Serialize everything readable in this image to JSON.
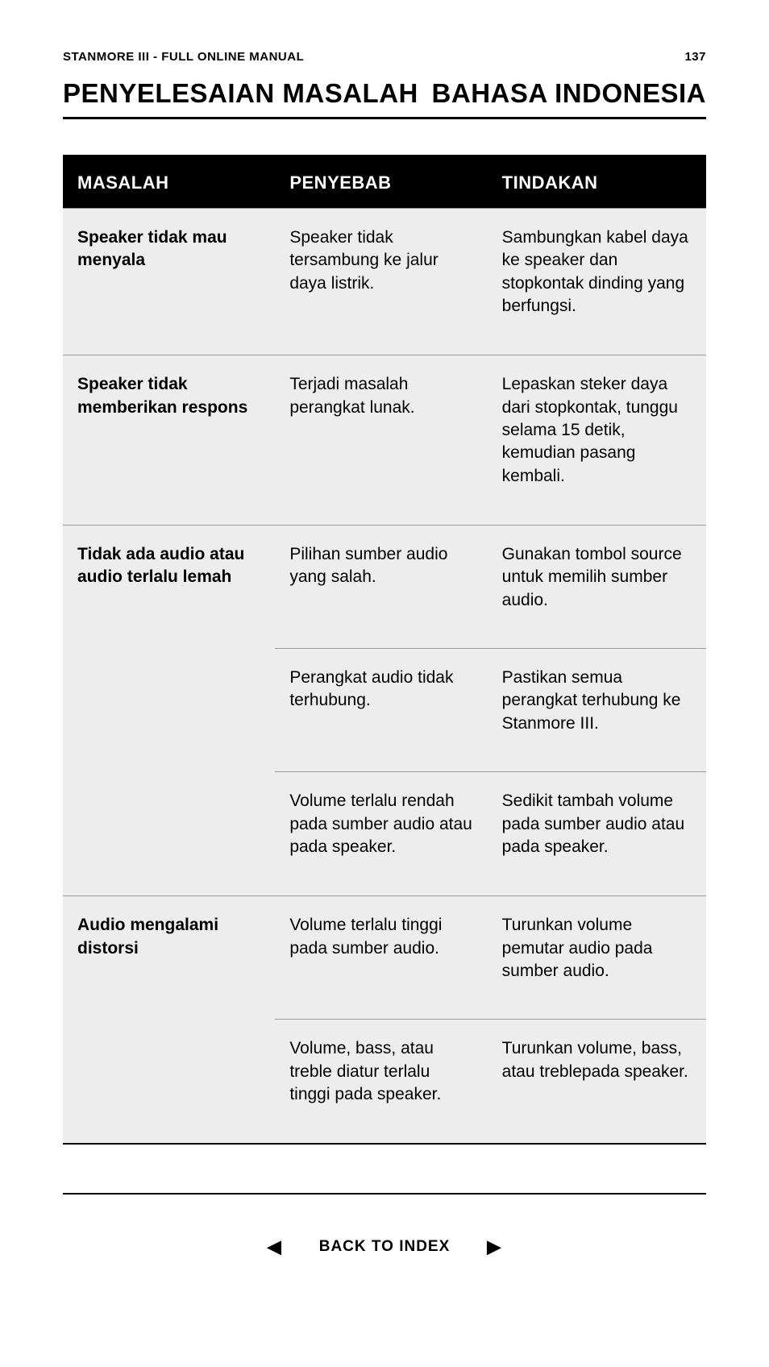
{
  "header": {
    "manual_title": "STANMORE III - FULL ONLINE MANUAL",
    "page_number": "137"
  },
  "titles": {
    "section": "PENYELESAIAN MASALAH",
    "language": "BAHASA INDONESIA"
  },
  "table": {
    "columns": [
      "MASALAH",
      "PENYEBAB",
      "TINDAKAN"
    ],
    "groups": [
      {
        "problem": "Speaker tidak mau menyala",
        "rows": [
          {
            "cause": "Speaker tidak tersambung ke jalur daya listrik.",
            "action": "Sambungkan kabel daya ke speaker dan stopkontak dinding yang berfungsi."
          }
        ]
      },
      {
        "problem": "Speaker tidak memberikan respons",
        "rows": [
          {
            "cause": "Terjadi masalah perangkat lunak.",
            "action": "Lepaskan steker daya dari stopkontak, tunggu selama 15 detik, kemudian pasang kembali."
          }
        ]
      },
      {
        "problem": "Tidak ada audio atau audio terlalu lemah",
        "rows": [
          {
            "cause": "Pilihan sumber audio yang salah.",
            "action": "Gunakan tombol source untuk memilih sumber audio."
          },
          {
            "cause": "Perangkat audio tidak terhubung.",
            "action": "Pastikan semua perangkat terhubung ke Stanmore III."
          },
          {
            "cause": "Volume terlalu rendah pada sumber audio atau pada speaker.",
            "action": "Sedikit tambah volume pada sumber audio atau pada speaker."
          }
        ]
      },
      {
        "problem": "Audio mengalami distorsi",
        "rows": [
          {
            "cause": "Volume terlalu tinggi pada sumber audio.",
            "action": "Turunkan volume pemutar audio pada sumber audio."
          },
          {
            "cause": "Volume, bass, atau treble diatur terlalu tinggi pada speaker.",
            "action": "Turunkan volume, bass, atau treblepada speaker."
          }
        ]
      }
    ]
  },
  "nav": {
    "back_label": "BACK TO INDEX",
    "prev_glyph": "◀",
    "next_glyph": "▶"
  },
  "colors": {
    "page_bg": "#ffffff",
    "text": "#000000",
    "table_bg": "#ededed",
    "header_row_bg": "#000000",
    "header_row_fg": "#ffffff",
    "divider": "#9a9a9a"
  }
}
